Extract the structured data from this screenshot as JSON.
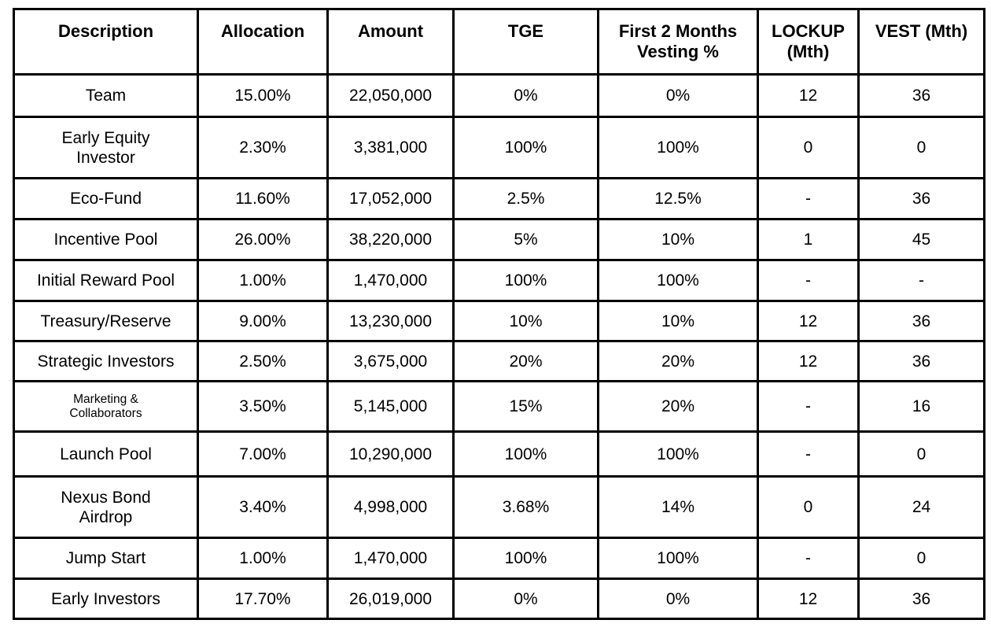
{
  "colors": {
    "border": "#000000",
    "background": "#ffffff",
    "text": "#000000"
  },
  "table": {
    "columns": [
      {
        "key": "description",
        "label": "Description"
      },
      {
        "key": "allocation",
        "label": "Allocation"
      },
      {
        "key": "amount",
        "label": "Amount"
      },
      {
        "key": "tge",
        "label": "TGE"
      },
      {
        "key": "vesting2m",
        "label": "First 2 Months\nVesting %"
      },
      {
        "key": "lockup",
        "label": "LOCKUP\n(Mth)"
      },
      {
        "key": "vest",
        "label": "VEST (Mth)"
      }
    ],
    "rows": [
      {
        "description": "Team",
        "allocation": "15.00%",
        "amount": "22,050,000",
        "tge": "0%",
        "vesting2m": "0%",
        "lockup": "12",
        "vest": "36"
      },
      {
        "description": "Early Equity\nInvestor",
        "allocation": "2.30%",
        "amount": "3,381,000",
        "tge": "100%",
        "vesting2m": "100%",
        "lockup": "0",
        "vest": "0"
      },
      {
        "description": "Eco-Fund",
        "allocation": "11.60%",
        "amount": "17,052,000",
        "tge": "2.5%",
        "vesting2m": "12.5%",
        "lockup": "-",
        "vest": "36"
      },
      {
        "description": "Incentive Pool",
        "allocation": "26.00%",
        "amount": "38,220,000",
        "tge": "5%",
        "vesting2m": "10%",
        "lockup": "1",
        "vest": "45"
      },
      {
        "description": "Initial Reward Pool",
        "allocation": "1.00%",
        "amount": "1,470,000",
        "tge": "100%",
        "vesting2m": "100%",
        "lockup": "-",
        "vest": "-"
      },
      {
        "description": "Treasury/Reserve",
        "allocation": "9.00%",
        "amount": "13,230,000",
        "tge": "10%",
        "vesting2m": "10%",
        "lockup": "12",
        "vest": "36"
      },
      {
        "description": "Strategic Investors",
        "allocation": "2.50%",
        "amount": "3,675,000",
        "tge": "20%",
        "vesting2m": "20%",
        "lockup": "12",
        "vest": "36"
      },
      {
        "description": "Marketing &\nCollaborators",
        "allocation": "3.50%",
        "amount": "5,145,000",
        "tge": "15%",
        "vesting2m": "20%",
        "lockup": "-",
        "vest": "16"
      },
      {
        "description": "Launch Pool",
        "allocation": "7.00%",
        "amount": "10,290,000",
        "tge": "100%",
        "vesting2m": "100%",
        "lockup": "-",
        "vest": "0"
      },
      {
        "description": "Nexus Bond\nAirdrop",
        "allocation": "3.40%",
        "amount": "4,998,000",
        "tge": "3.68%",
        "vesting2m": "14%",
        "lockup": "0",
        "vest": "24"
      },
      {
        "description": "Jump Start",
        "allocation": "1.00%",
        "amount": "1,470,000",
        "tge": "100%",
        "vesting2m": "100%",
        "lockup": "-",
        "vest": "0"
      },
      {
        "description": "Early Investors",
        "allocation": "17.70%",
        "amount": "26,019,000",
        "tge": "0%",
        "vesting2m": "0%",
        "lockup": "12",
        "vest": "36"
      }
    ]
  }
}
